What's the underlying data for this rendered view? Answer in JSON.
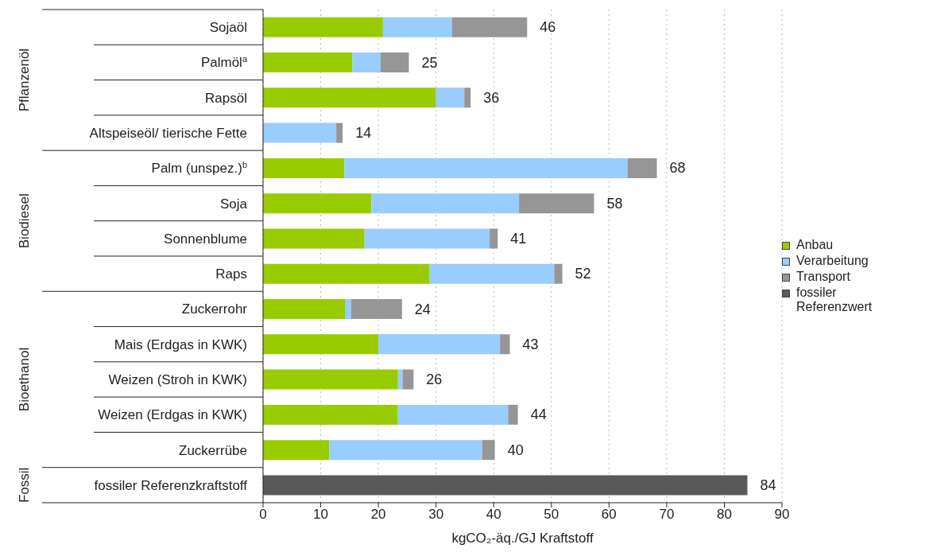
{
  "chart_data": {
    "type": "bar",
    "orientation": "horizontal",
    "stacked": true,
    "categories": [
      "Sojaöl",
      "Palmöl$^{a}$",
      "Rapsöl",
      "Altspeiseöl/ tierische Fette",
      "Palm (unspez.)$^{b}$",
      "Soja",
      "Sonnenblume",
      "Raps",
      "Zuckerrohr",
      "Mais (Erdgas in KWK)",
      "Weizen (Stroh in KWK)",
      "Weizen (Erdgas in KWK)",
      "Zuckerrübe",
      "fossiler Referenzkraftstoff"
    ],
    "series": [
      {
        "name": "Anbau",
        "color": "#99cc00",
        "values": [
          20.8,
          15.5,
          30,
          0,
          14.1,
          18.8,
          17.6,
          28.9,
          14.3,
          20,
          23.4,
          23.4,
          11.5,
          null
        ]
      },
      {
        "name": "Verarbeitung",
        "color": "#99ccff",
        "values": [
          12,
          4.9,
          4.9,
          12.7,
          49.1,
          25.6,
          21.7,
          21.6,
          1,
          21.1,
          0.8,
          19.1,
          26.5,
          null
        ]
      },
      {
        "name": "Transport",
        "color": "#969696",
        "values": [
          13,
          4.9,
          1.1,
          1.1,
          5.1,
          13,
          1.4,
          1.4,
          8.8,
          1.7,
          1.9,
          1.7,
          2.2,
          null
        ]
      },
      {
        "name": "fossiler Referenzwert",
        "color": "#595959",
        "values": [
          null,
          null,
          null,
          null,
          null,
          null,
          null,
          null,
          null,
          null,
          null,
          null,
          null,
          84
        ]
      }
    ],
    "totals": [
      "46",
      "25",
      "36",
      "14",
      "68",
      "58",
      "41",
      "52",
      "24",
      "43",
      "26",
      "44",
      "40",
      "84"
    ],
    "xlabel": "kgCO₂-äq./GJ Kraftstoff",
    "xlim": [
      0,
      90
    ],
    "xticks": [
      0,
      10,
      20,
      30,
      40,
      50,
      60,
      70,
      80,
      90
    ],
    "grid": "x",
    "legend": "right",
    "annotations": [
      "Pflanzenöl",
      "Biodiesel",
      "Bioethanol",
      "Fossil"
    ]
  }
}
